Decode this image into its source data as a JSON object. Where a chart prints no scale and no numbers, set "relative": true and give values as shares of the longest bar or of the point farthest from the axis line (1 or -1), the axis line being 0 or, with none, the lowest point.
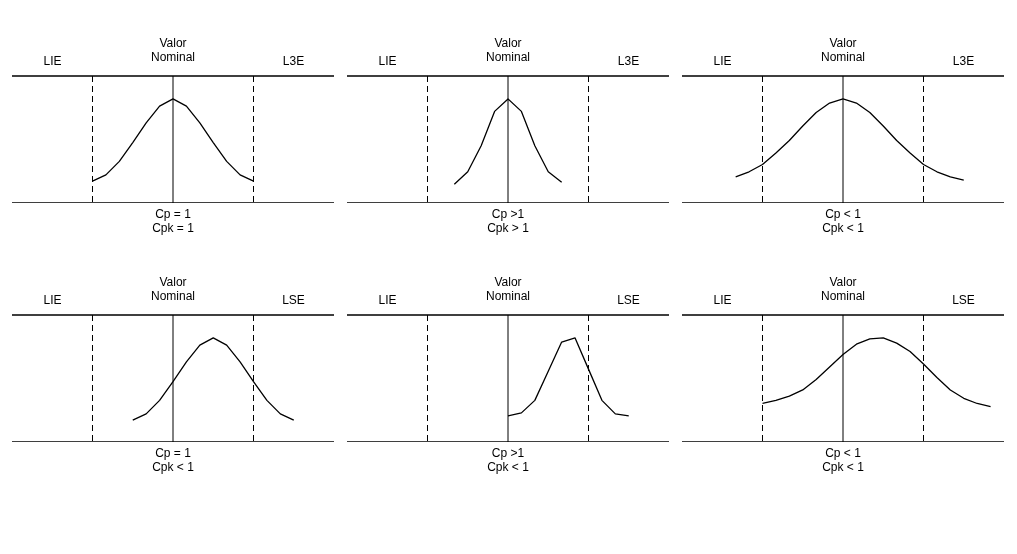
{
  "chart_data": [
    {
      "type": "line",
      "relative": true,
      "marker": "none",
      "line_style": "solid",
      "categories": [
        null,
        null,
        null,
        null,
        null,
        null,
        null,
        null,
        null,
        null,
        null,
        null,
        null,
        null,
        null,
        null,
        null,
        null,
        null,
        null,
        null,
        null,
        null,
        null,
        null
      ],
      "series": [
        {
          "color": "#000000",
          "values": [
            null,
            null,
            null,
            null,
            null,
            null,
            0.21,
            0.27,
            0.4,
            0.58,
            0.77,
            0.93,
            1,
            0.93,
            0.77,
            0.58,
            0.4,
            0.27,
            0.21,
            null,
            null,
            null,
            null,
            null,
            null
          ]
        }
      ],
      "annotations": [
        "LIE",
        "Valor\nNominal",
        "L3E",
        "Cp = 1",
        "Cpk = 1"
      ]
    },
    {
      "type": "line",
      "relative": true,
      "marker": "none",
      "line_style": "solid",
      "categories": [
        null,
        null,
        null,
        null,
        null,
        null,
        null,
        null,
        null,
        null,
        null,
        null,
        null,
        null,
        null,
        null,
        null,
        null,
        null,
        null,
        null,
        null,
        null,
        null,
        null
      ],
      "series": [
        {
          "color": "#000000",
          "values": [
            null,
            null,
            null,
            null,
            null,
            null,
            null,
            null,
            0.18,
            0.3,
            0.55,
            0.88,
            1,
            0.88,
            0.55,
            0.3,
            0.2,
            null,
            null,
            null,
            null,
            null,
            null,
            null,
            null
          ]
        }
      ],
      "annotations": [
        "LIE",
        "Valor\nNominal",
        "L3E",
        "Cp >1",
        "Cpk > 1"
      ]
    },
    {
      "type": "line",
      "relative": true,
      "marker": "none",
      "line_style": "solid",
      "categories": [
        null,
        null,
        null,
        null,
        null,
        null,
        null,
        null,
        null,
        null,
        null,
        null,
        null,
        null,
        null,
        null,
        null,
        null,
        null,
        null,
        null,
        null,
        null,
        null,
        null
      ],
      "series": [
        {
          "color": "#000000",
          "values": [
            null,
            null,
            null,
            null,
            0.25,
            0.3,
            0.37,
            0.48,
            0.6,
            0.74,
            0.87,
            0.96,
            1,
            0.96,
            0.87,
            0.74,
            0.6,
            0.48,
            0.37,
            0.3,
            0.25,
            0.22,
            null,
            null,
            null
          ]
        }
      ],
      "annotations": [
        "LIE",
        "Valor\nNominal",
        "L3E",
        "Cp < 1",
        "Cpk < 1"
      ]
    },
    {
      "type": "line",
      "relative": true,
      "marker": "none",
      "line_style": "solid",
      "categories": [
        null,
        null,
        null,
        null,
        null,
        null,
        null,
        null,
        null,
        null,
        null,
        null,
        null,
        null,
        null,
        null,
        null,
        null,
        null,
        null,
        null,
        null,
        null,
        null,
        null
      ],
      "series": [
        {
          "color": "#000000",
          "values": [
            null,
            null,
            null,
            null,
            null,
            null,
            null,
            null,
            null,
            0.21,
            0.27,
            0.4,
            0.58,
            0.77,
            0.93,
            1,
            0.93,
            0.77,
            0.58,
            0.4,
            0.27,
            0.21,
            null,
            null,
            null
          ]
        }
      ],
      "annotations": [
        "LIE",
        "Valor\nNominal",
        "LSE",
        "Cp = 1",
        "Cpk < 1"
      ]
    },
    {
      "type": "line",
      "relative": true,
      "marker": "none",
      "line_style": "solid",
      "categories": [
        null,
        null,
        null,
        null,
        null,
        null,
        null,
        null,
        null,
        null,
        null,
        null,
        null,
        null,
        null,
        null,
        null,
        null,
        null,
        null,
        null,
        null,
        null,
        null,
        null
      ],
      "series": [
        {
          "color": "#000000",
          "values": [
            null,
            null,
            null,
            null,
            null,
            null,
            null,
            null,
            null,
            null,
            null,
            null,
            0.25,
            0.28,
            0.4,
            0.68,
            0.96,
            1,
            0.7,
            0.4,
            0.27,
            0.25,
            null,
            null,
            null
          ]
        }
      ],
      "annotations": [
        "LIE",
        "Valor\nNominal",
        "LSE",
        "Cp >1",
        "Cpk < 1"
      ]
    },
    {
      "type": "line",
      "relative": true,
      "marker": "none",
      "line_style": "solid",
      "categories": [
        null,
        null,
        null,
        null,
        null,
        null,
        null,
        null,
        null,
        null,
        null,
        null,
        null,
        null,
        null,
        null,
        null,
        null,
        null,
        null,
        null,
        null,
        null,
        null,
        null
      ],
      "series": [
        {
          "color": "#000000",
          "values": [
            null,
            null,
            null,
            null,
            null,
            null,
            0.37,
            0.4,
            0.44,
            0.5,
            0.6,
            0.72,
            0.84,
            0.94,
            0.99,
            1,
            0.95,
            0.87,
            0.75,
            0.62,
            0.5,
            0.42,
            0.37,
            0.34,
            null
          ]
        }
      ],
      "annotations": [
        "LIE",
        "Valor\nNominal",
        "LSE",
        "Cp < 1",
        "Cpk < 1"
      ]
    }
  ]
}
